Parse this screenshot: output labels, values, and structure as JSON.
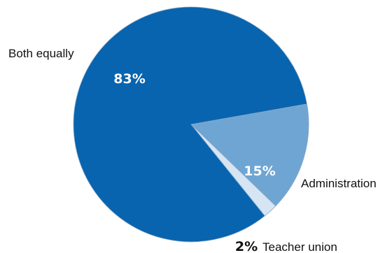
{
  "chart_data": {
    "type": "pie",
    "slices": [
      {
        "category": "Both equally",
        "value": 83,
        "value_label": "83%",
        "color": "#0864ae"
      },
      {
        "category": "Administration",
        "value": 15,
        "value_label": "15%",
        "color": "#6ea5d3"
      },
      {
        "category": "Teacher union",
        "value": 2,
        "value_label": "2%",
        "color": "#d6e5f3"
      }
    ]
  }
}
